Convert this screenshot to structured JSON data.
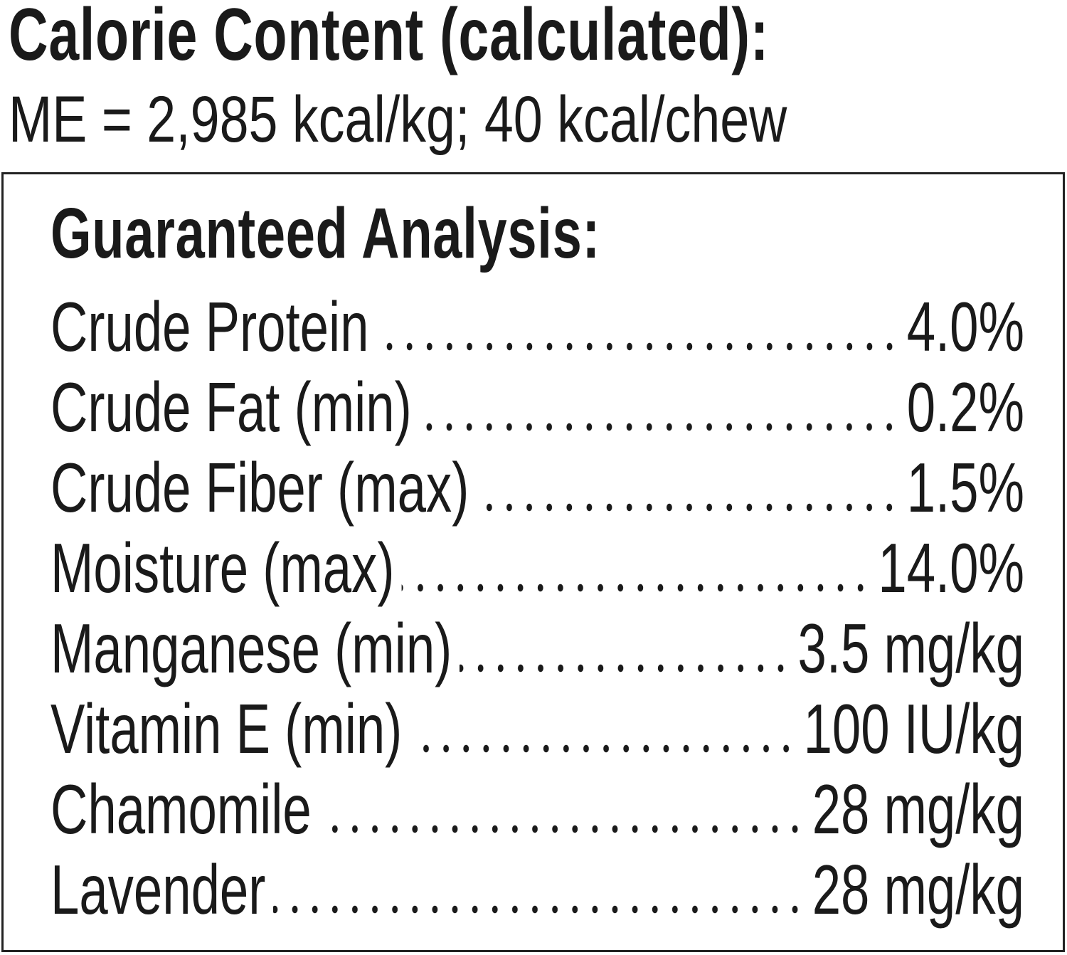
{
  "calorie": {
    "title": "Calorie Content (calculated):",
    "value": "ME = 2,985 kcal/kg; 40  kcal/chew"
  },
  "analysis": {
    "heading": "Guaranteed Analysis:",
    "rows": [
      {
        "label": "Crude Protein",
        "value": "4.0%"
      },
      {
        "label": "Crude Fat (min)",
        "value": "0.2%"
      },
      {
        "label": "Crude Fiber (max)",
        "value": "1.5%"
      },
      {
        "label": "Moisture (max)",
        "value": "14.0%"
      },
      {
        "label": "Manganese (min)",
        "value": "3.5 mg/kg"
      },
      {
        "label": "Vitamin E (min)",
        "value": "100 IU/kg"
      },
      {
        "label": "Chamomile",
        "value": "28 mg/kg"
      },
      {
        "label": "Lavender",
        "value": "28 mg/kg"
      }
    ]
  }
}
